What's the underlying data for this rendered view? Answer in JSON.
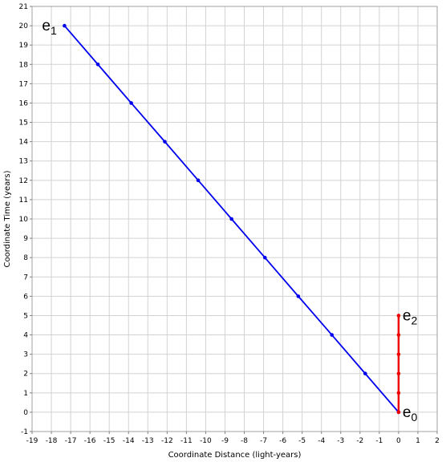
{
  "chart_data": {
    "type": "line",
    "title": "",
    "xlabel": "Coordinate Distance (light-years)",
    "ylabel": "Coordinate Time (years)",
    "xlim": [
      -19,
      2
    ],
    "ylim": [
      -1,
      21
    ],
    "x_ticks": [
      -19,
      -18,
      -17,
      -16,
      -15,
      -14,
      -13,
      -12,
      -11,
      -10,
      -9,
      -8,
      -7,
      -6,
      -5,
      -4,
      -3,
      -2,
      -1,
      0,
      1,
      2
    ],
    "y_ticks": [
      -1,
      0,
      1,
      2,
      3,
      4,
      5,
      6,
      7,
      8,
      9,
      10,
      11,
      12,
      13,
      14,
      15,
      16,
      17,
      18,
      19,
      20,
      21
    ],
    "grid": true,
    "series": [
      {
        "color": "#0000ee",
        "points": [
          {
            "x": 0,
            "y": 0
          },
          {
            "x": -1.73,
            "y": 2
          },
          {
            "x": -3.46,
            "y": 4
          },
          {
            "x": -5.2,
            "y": 6
          },
          {
            "x": -6.93,
            "y": 8
          },
          {
            "x": -8.66,
            "y": 10
          },
          {
            "x": -10.39,
            "y": 12
          },
          {
            "x": -12.12,
            "y": 14
          },
          {
            "x": -13.86,
            "y": 16
          },
          {
            "x": -15.59,
            "y": 18
          },
          {
            "x": -17.32,
            "y": 20
          }
        ]
      },
      {
        "color": "#ee0000",
        "points": [
          {
            "x": 0,
            "y": 0
          },
          {
            "x": 0,
            "y": 1
          },
          {
            "x": 0,
            "y": 2
          },
          {
            "x": 0,
            "y": 3
          },
          {
            "x": 0,
            "y": 4
          },
          {
            "x": 0,
            "y": 5
          }
        ]
      }
    ],
    "annotations": [
      {
        "text": "e",
        "sub": "0",
        "x": 0,
        "y": 0,
        "anchor": "right"
      },
      {
        "text": "e",
        "sub": "1",
        "x": -17.32,
        "y": 20,
        "anchor": "left"
      },
      {
        "text": "e",
        "sub": "2",
        "x": 0,
        "y": 5,
        "anchor": "right"
      }
    ]
  }
}
